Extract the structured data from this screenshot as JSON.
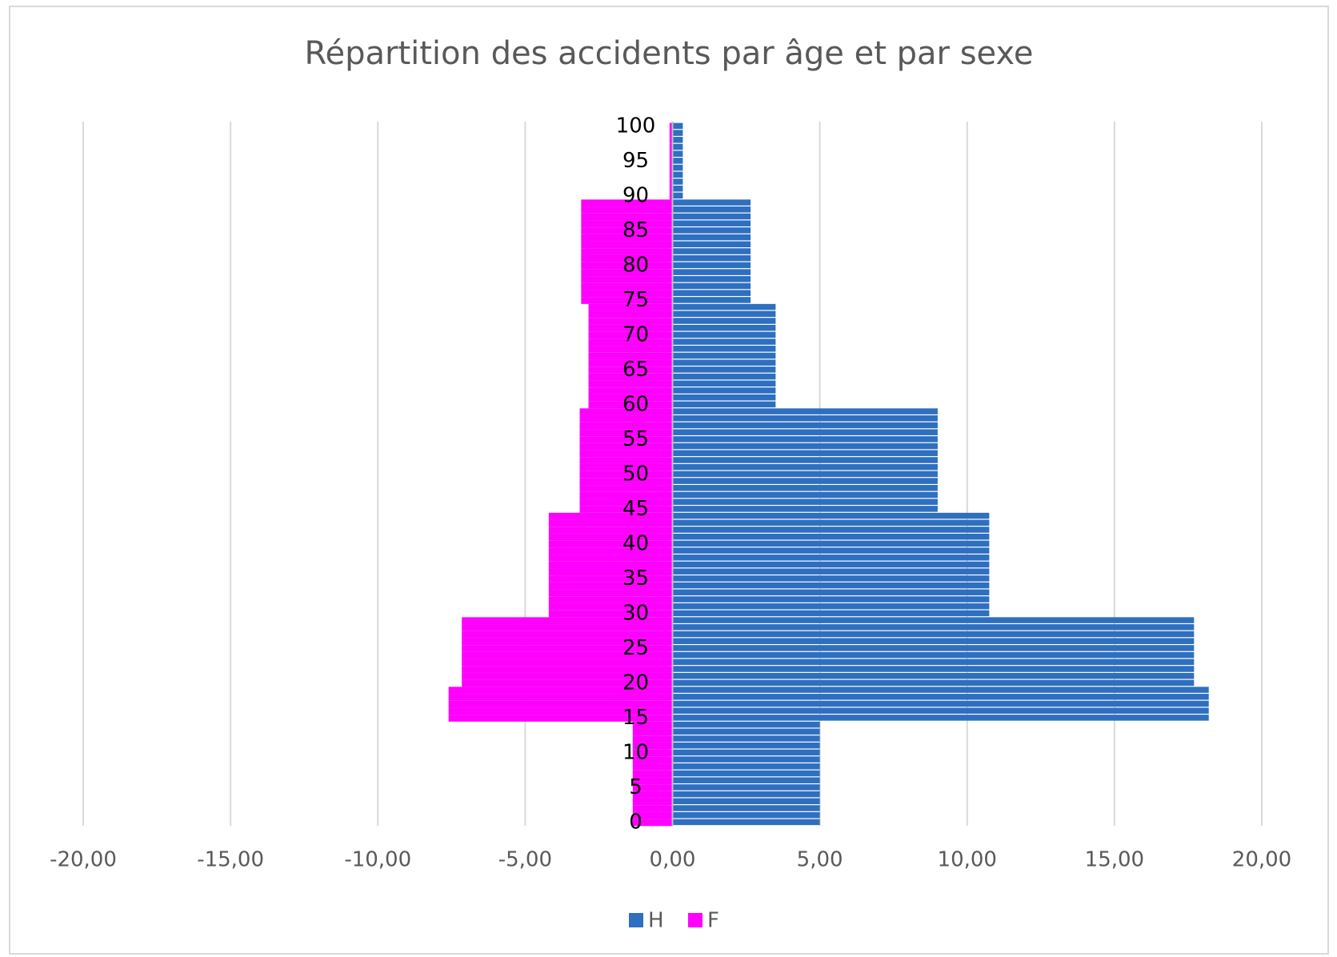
{
  "chart_data": {
    "type": "bar",
    "orientation": "horizontal",
    "title": "Répartition des accidents par âge et par sexe",
    "categories": [
      0,
      null,
      null,
      null,
      null,
      5,
      null,
      null,
      null,
      null,
      10,
      null,
      null,
      null,
      null,
      15,
      null,
      null,
      null,
      null,
      20,
      null,
      null,
      null,
      null,
      25,
      null,
      null,
      null,
      null,
      30,
      null,
      null,
      null,
      null,
      35,
      null,
      null,
      null,
      null,
      40,
      null,
      null,
      null,
      null,
      45,
      null,
      null,
      null,
      null,
      50,
      null,
      null,
      null,
      null,
      55,
      null,
      null,
      null,
      null,
      60,
      null,
      null,
      null,
      null,
      65,
      null,
      null,
      null,
      null,
      70,
      null,
      null,
      null,
      null,
      75,
      null,
      null,
      null,
      null,
      80,
      null,
      null,
      null,
      null,
      85,
      null,
      null,
      null,
      null,
      90,
      null,
      null,
      null,
      null,
      95,
      null,
      null,
      null,
      null,
      100
    ],
    "series": [
      {
        "name": "H",
        "color": "#2e6fc0",
        "values": [
          5,
          5,
          5,
          5,
          5,
          5,
          5,
          5,
          5,
          5,
          5,
          5,
          5,
          5,
          5,
          18.2,
          18.2,
          18.2,
          18.2,
          18.2,
          17.7,
          17.7,
          17.7,
          17.7,
          17.7,
          17.7,
          17.7,
          17.7,
          17.7,
          17.7,
          10.75,
          10.75,
          10.75,
          10.75,
          10.75,
          10.75,
          10.75,
          10.75,
          10.75,
          10.75,
          10.75,
          10.75,
          10.75,
          10.75,
          10.75,
          9,
          9,
          9,
          9,
          9,
          9,
          9,
          9,
          9,
          9,
          9,
          9,
          9,
          9,
          9,
          3.5,
          3.5,
          3.5,
          3.5,
          3.5,
          3.5,
          3.5,
          3.5,
          3.5,
          3.5,
          3.5,
          3.5,
          3.5,
          3.5,
          3.5,
          2.65,
          2.65,
          2.65,
          2.65,
          2.65,
          2.65,
          2.65,
          2.65,
          2.65,
          2.65,
          2.65,
          2.65,
          2.65,
          2.65,
          2.65,
          0.35,
          0.35,
          0.35,
          0.35,
          0.35,
          0.35,
          0.35,
          0.35,
          0.35,
          0.35,
          0.35
        ]
      },
      {
        "name": "F",
        "color": "#ff00ff",
        "values": [
          -1.35,
          -1.35,
          -1.35,
          -1.35,
          -1.35,
          -1.35,
          -1.35,
          -1.35,
          -1.35,
          -1.35,
          -1.35,
          -1.35,
          -1.35,
          -1.35,
          -1.35,
          -7.6,
          -7.6,
          -7.6,
          -7.6,
          -7.6,
          -7.15,
          -7.15,
          -7.15,
          -7.15,
          -7.15,
          -7.15,
          -7.15,
          -7.15,
          -7.15,
          -7.15,
          -4.2,
          -4.2,
          -4.2,
          -4.2,
          -4.2,
          -4.2,
          -4.2,
          -4.2,
          -4.2,
          -4.2,
          -4.2,
          -4.2,
          -4.2,
          -4.2,
          -4.2,
          -3.15,
          -3.15,
          -3.15,
          -3.15,
          -3.15,
          -3.15,
          -3.15,
          -3.15,
          -3.15,
          -3.15,
          -3.15,
          -3.15,
          -3.15,
          -3.15,
          -3.15,
          -2.85,
          -2.85,
          -2.85,
          -2.85,
          -2.85,
          -2.85,
          -2.85,
          -2.85,
          -2.85,
          -2.85,
          -2.85,
          -2.85,
          -2.85,
          -2.85,
          -2.85,
          -3.1,
          -3.1,
          -3.1,
          -3.1,
          -3.1,
          -3.1,
          -3.1,
          -3.1,
          -3.1,
          -3.1,
          -3.1,
          -3.1,
          -3.1,
          -3.1,
          -3.1,
          -0.1,
          -0.1,
          -0.1,
          -0.1,
          -0.1,
          -0.1,
          -0.1,
          -0.1,
          -0.1,
          -0.1,
          -0.1
        ]
      }
    ],
    "xlim": [
      -20,
      20
    ],
    "xticks": [
      {
        "value": -20,
        "label": "-20,00"
      },
      {
        "value": -15,
        "label": "-15,00"
      },
      {
        "value": -10,
        "label": "-10,00"
      },
      {
        "value": -5,
        "label": "-5,00"
      },
      {
        "value": 0,
        "label": "0,00"
      },
      {
        "value": 5,
        "label": "5,00"
      },
      {
        "value": 10,
        "label": "10,00"
      },
      {
        "value": 15,
        "label": "15,00"
      },
      {
        "value": 20,
        "label": "20,00"
      }
    ],
    "grid": true,
    "legend": "bottom"
  }
}
